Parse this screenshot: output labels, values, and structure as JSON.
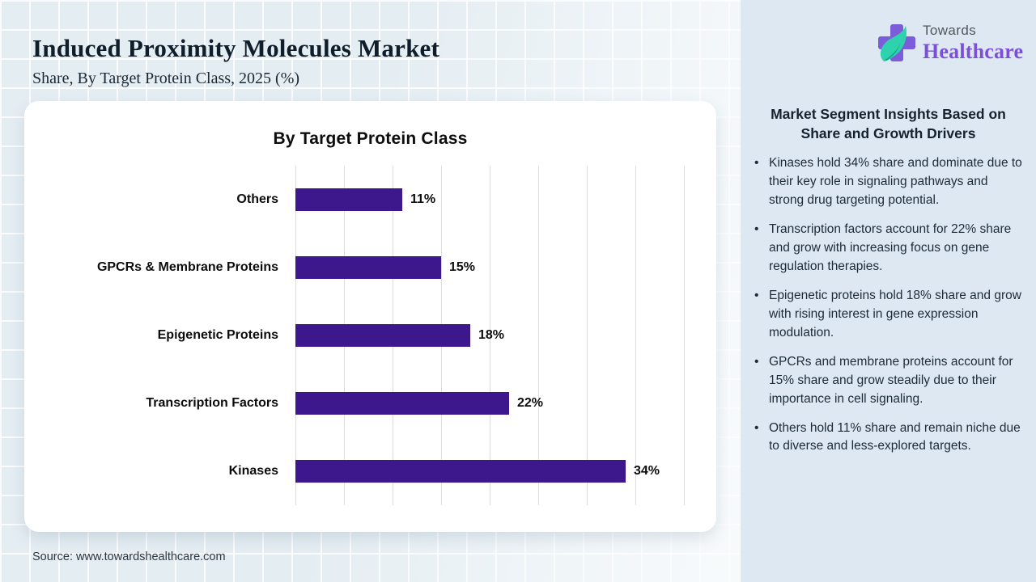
{
  "header": {
    "title": "Induced Proximity Molecules Market",
    "subtitle": "Share, By Target Protein Class, 2025 (%)"
  },
  "logo": {
    "word_top": "Towards",
    "word_bottom": "Healthcare",
    "icon": "medical-cross-with-leaf"
  },
  "chart_data": {
    "type": "bar",
    "orientation": "horizontal",
    "title": "By Target Protein Class",
    "categories": [
      "Others",
      "GPCRs & Membrane Proteins",
      "Epigenetic Proteins",
      "Transcription Factors",
      "Kinases"
    ],
    "values": [
      11,
      15,
      18,
      22,
      34
    ],
    "value_labels": [
      "11%",
      "15%",
      "18%",
      "22%",
      "34%"
    ],
    "xlabel": "",
    "ylabel": "",
    "xlim": [
      0,
      40
    ],
    "gridline_step": 5,
    "grid": true,
    "legend": false,
    "bar_color": "#3d178c"
  },
  "insights": {
    "heading": "Market Segment Insights Based on Share and Growth Drivers",
    "bullet_glyph": "•",
    "bullets": [
      "Kinases hold 34% share and dominate due to their key role in signaling pathways and strong drug targeting potential.",
      "Transcription factors account for 22% share and grow with increasing focus on gene regulation therapies.",
      "Epigenetic proteins hold 18% share and grow with rising interest in gene expression modulation.",
      "GPCRs and membrane proteins account for 15% share and grow steadily due to their importance in cell signaling.",
      "Others hold 11% share and remain niche due to diverse and less-explored targets."
    ]
  },
  "footer": {
    "source": "Source: www.towardshealthcare.com"
  },
  "colors": {
    "bar": "#3d178c",
    "logo_purple": "#7b4fd6",
    "logo_cross_purple": "#7c5cd8",
    "logo_leaf_teal": "#2ed3ae",
    "panel_background": "#dde8f2",
    "page_background": "#e4edf2",
    "gridline": "#d9dde0"
  }
}
